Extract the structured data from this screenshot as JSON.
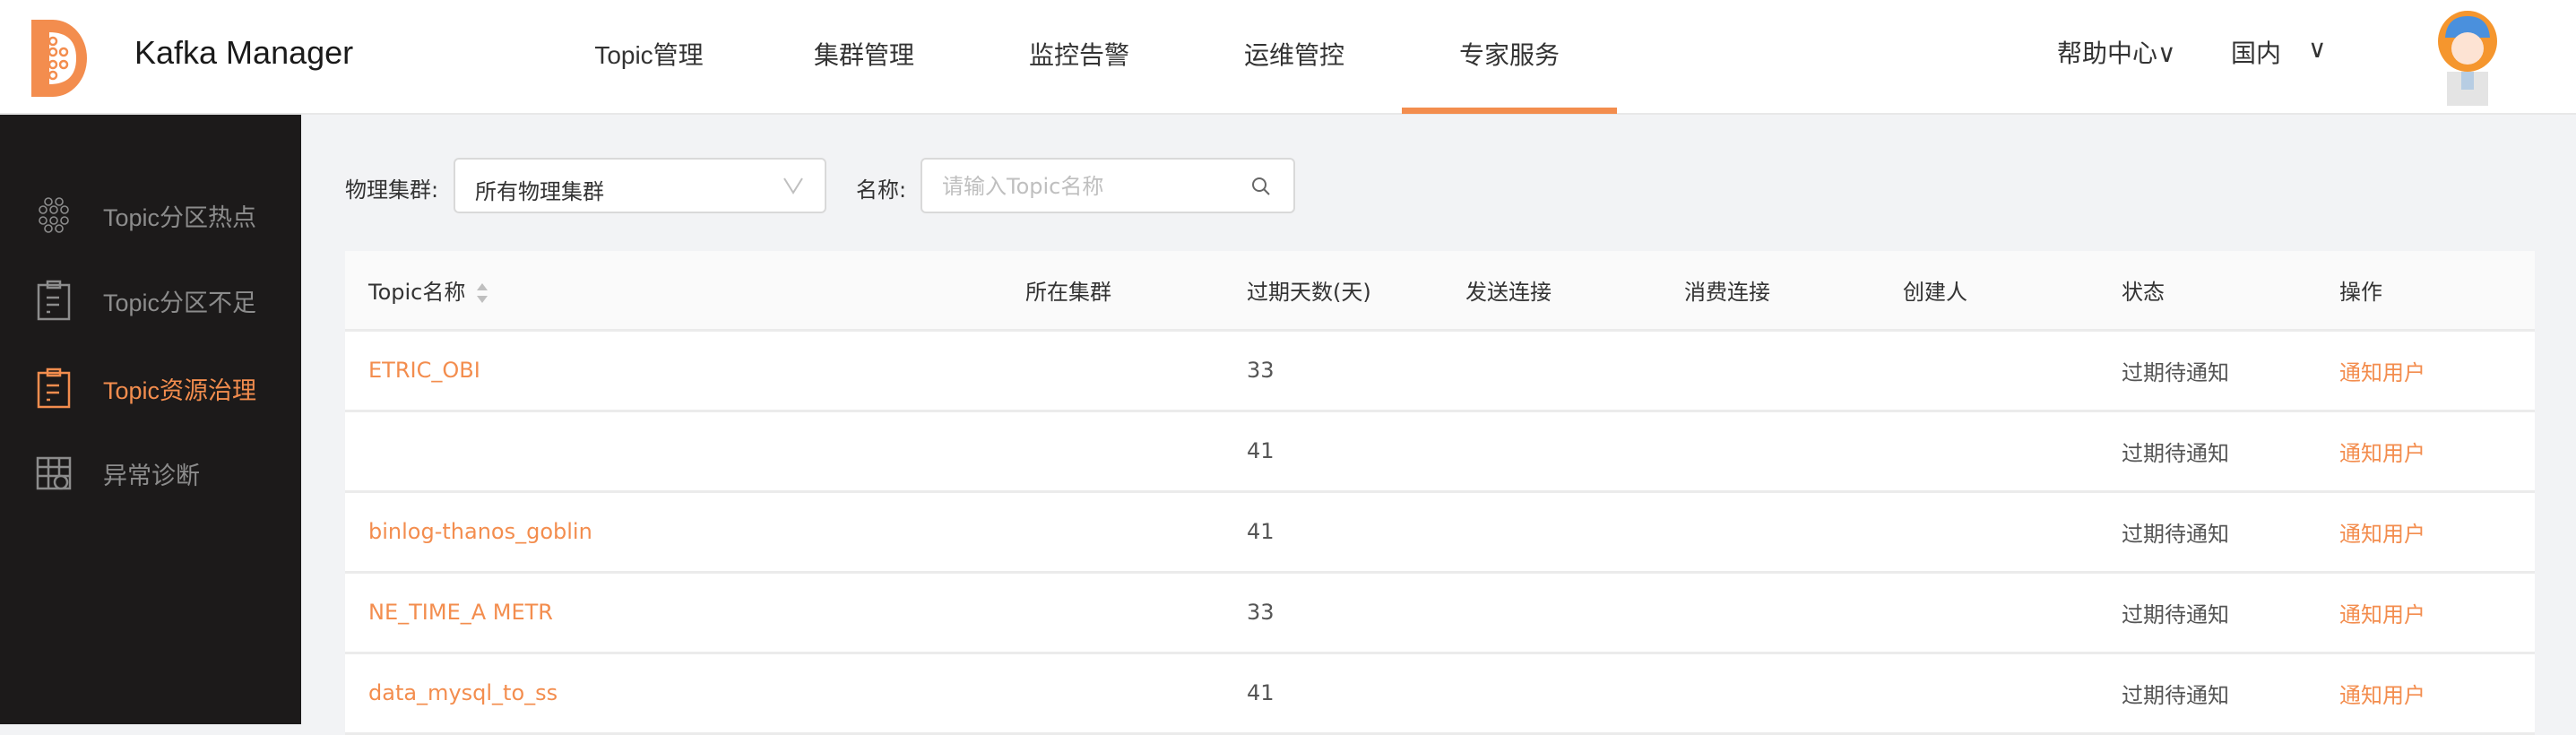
{
  "header": {
    "app_title": "Kafka Manager",
    "nav": [
      {
        "label": "Topic管理"
      },
      {
        "label": "集群管理"
      },
      {
        "label": "监控告警"
      },
      {
        "label": "运维管控"
      },
      {
        "label": "专家服务",
        "active": true
      }
    ],
    "help_label": "帮助中心∨",
    "region_label": "国内",
    "region_chevron": "∨"
  },
  "sidebar": {
    "items": [
      {
        "label": "Topic分区热点",
        "icon": "honeycomb-icon"
      },
      {
        "label": "Topic分区不足",
        "icon": "clipboard-icon"
      },
      {
        "label": "Topic资源治理",
        "icon": "clipboard-icon",
        "active": true
      },
      {
        "label": "异常诊断",
        "icon": "table-clock-icon"
      }
    ]
  },
  "filters": {
    "cluster_label": "物理集群:",
    "cluster_value": "所有物理集群",
    "name_label": "名称:",
    "name_placeholder": "请输入Topic名称",
    "name_value": ""
  },
  "table": {
    "columns": [
      "Topic名称",
      "所在集群",
      "过期天数(天)",
      "发送连接",
      "消费连接",
      "创建人",
      "状态",
      "操作"
    ],
    "rows": [
      {
        "topic": "ETRIC_OBI",
        "cluster": "",
        "days": "33",
        "send": "",
        "consume": "",
        "creator": "",
        "status": "过期待通知",
        "action": "通知用户"
      },
      {
        "topic": "",
        "cluster": "",
        "days": "41",
        "send": "",
        "consume": "",
        "creator": "",
        "status": "过期待通知",
        "action": "通知用户"
      },
      {
        "topic": "binlog-thanos_goblin",
        "cluster": "",
        "days": "41",
        "send": "",
        "consume": "",
        "creator": "",
        "status": "过期待通知",
        "action": "通知用户"
      },
      {
        "topic": "NE_TIME_A METR",
        "cluster": "",
        "days": "33",
        "send": "",
        "consume": "",
        "creator": "",
        "status": "过期待通知",
        "action": "通知用户"
      },
      {
        "topic": "data_mysql_to_ss",
        "cluster": "",
        "days": "41",
        "send": "",
        "consume": "",
        "creator": "",
        "status": "过期待通知",
        "action": "通知用户"
      }
    ]
  },
  "colors": {
    "accent": "#f38d4e",
    "sidebar_bg": "#1c1a1a",
    "page_bg": "#f2f3f5"
  }
}
